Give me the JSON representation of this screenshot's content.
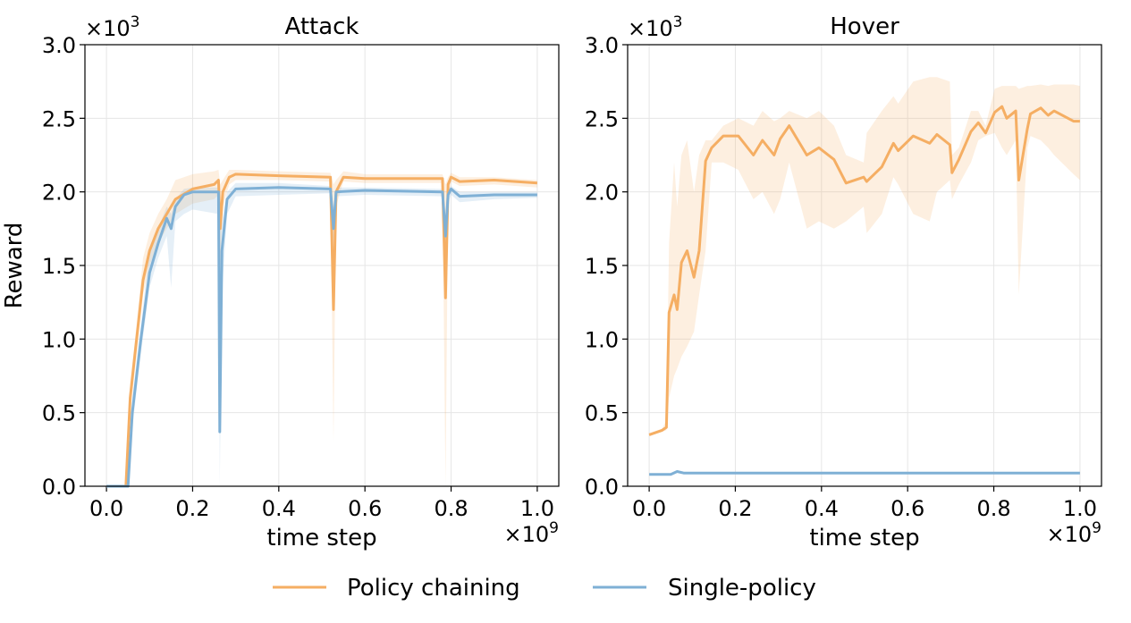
{
  "chart_data": [
    {
      "type": "line",
      "title": "Attack",
      "xlabel": "time step",
      "ylabel": "Reward",
      "x_multiplier": "×10^9",
      "y_multiplier": "×10^3",
      "xlim": [
        -0.05,
        1.05
      ],
      "ylim": [
        0,
        3.0
      ],
      "xticks": [
        "0.0",
        "0.2",
        "0.4",
        "0.6",
        "0.8",
        "1.0"
      ],
      "yticks": [
        "0.0",
        "0.5",
        "1.0",
        "1.5",
        "2.0",
        "2.5",
        "3.0"
      ],
      "grid": true,
      "series": [
        {
          "name": "Policy chaining",
          "color": "#f5ae63",
          "x": [
            0,
            0.045,
            0.055,
            0.07,
            0.085,
            0.1,
            0.12,
            0.14,
            0.16,
            0.2,
            0.25,
            0.26,
            0.264,
            0.27,
            0.285,
            0.3,
            0.4,
            0.52,
            0.527,
            0.533,
            0.55,
            0.6,
            0.78,
            0.787,
            0.793,
            0.8,
            0.82,
            0.9,
            1.0
          ],
          "y": [
            0,
            0,
            0.6,
            1.0,
            1.4,
            1.6,
            1.75,
            1.85,
            1.95,
            2.02,
            2.05,
            2.08,
            1.75,
            2.0,
            2.1,
            2.12,
            2.11,
            2.1,
            1.2,
            2.0,
            2.1,
            2.09,
            2.09,
            1.28,
            2.05,
            2.1,
            2.07,
            2.08,
            2.06
          ],
          "lower": [
            0,
            0,
            0.5,
            0.9,
            1.3,
            1.5,
            1.65,
            1.75,
            1.85,
            1.92,
            1.95,
            1.98,
            1.5,
            1.9,
            2.05,
            2.08,
            2.08,
            2.07,
            0.3,
            1.9,
            2.07,
            2.06,
            2.06,
            0.0,
            1.95,
            2.07,
            2.04,
            2.05,
            2.03
          ],
          "upper": [
            0,
            0,
            0.7,
            1.1,
            1.55,
            1.72,
            1.85,
            1.95,
            2.08,
            2.12,
            2.14,
            2.15,
            2.05,
            2.08,
            2.15,
            2.15,
            2.14,
            2.13,
            2.05,
            2.08,
            2.14,
            2.12,
            2.12,
            2.05,
            2.1,
            2.13,
            2.1,
            2.1,
            2.08
          ]
        },
        {
          "name": "Single-policy",
          "color": "#7fb0d5",
          "x": [
            0,
            0.05,
            0.06,
            0.08,
            0.1,
            0.12,
            0.14,
            0.15,
            0.16,
            0.18,
            0.2,
            0.26,
            0.263,
            0.268,
            0.28,
            0.3,
            0.4,
            0.52,
            0.527,
            0.533,
            0.6,
            0.78,
            0.787,
            0.793,
            0.8,
            0.82,
            0.9,
            1.0
          ],
          "y": [
            0,
            0,
            0.5,
            1.0,
            1.45,
            1.65,
            1.82,
            1.75,
            1.9,
            1.98,
            2.0,
            2.0,
            0.37,
            1.6,
            1.95,
            2.02,
            2.03,
            2.02,
            1.75,
            2.0,
            2.01,
            2.0,
            1.7,
            1.98,
            2.02,
            1.97,
            1.98,
            1.98
          ],
          "lower": [
            0,
            0,
            0.4,
            0.9,
            1.35,
            1.55,
            1.7,
            1.35,
            1.8,
            1.85,
            1.88,
            1.85,
            0.0,
            1.3,
            1.85,
            1.97,
            1.98,
            1.99,
            1.65,
            1.97,
            1.98,
            1.97,
            1.6,
            1.92,
            1.98,
            1.93,
            1.95,
            1.96
          ],
          "upper": [
            0,
            0,
            0.6,
            1.1,
            1.6,
            1.75,
            1.9,
            1.85,
            1.95,
            2.02,
            2.03,
            2.03,
            1.9,
            1.8,
            2.0,
            2.06,
            2.06,
            2.04,
            1.9,
            2.03,
            2.03,
            2.02,
            1.85,
            2.02,
            2.04,
            2.0,
            2.0,
            2.0
          ]
        }
      ]
    },
    {
      "type": "line",
      "title": "Hover",
      "xlabel": "time step",
      "ylabel": "",
      "x_multiplier": "×10^9",
      "y_multiplier": "×10^3",
      "xlim": [
        -0.05,
        1.05
      ],
      "ylim": [
        0,
        3.0
      ],
      "xticks": [
        "0.0",
        "0.2",
        "0.4",
        "0.6",
        "0.8",
        "1.0"
      ],
      "yticks": [
        "0.0",
        "0.5",
        "1.0",
        "1.5",
        "2.0",
        "2.5",
        "3.0"
      ],
      "grid": true,
      "series": [
        {
          "name": "Policy chaining",
          "color": "#f5ae63",
          "x": [
            0,
            0.03,
            0.04,
            0.046,
            0.058,
            0.065,
            0.075,
            0.088,
            0.104,
            0.116,
            0.131,
            0.145,
            0.172,
            0.207,
            0.242,
            0.263,
            0.29,
            0.304,
            0.325,
            0.366,
            0.394,
            0.429,
            0.457,
            0.498,
            0.505,
            0.54,
            0.567,
            0.578,
            0.613,
            0.651,
            0.668,
            0.698,
            0.703,
            0.719,
            0.747,
            0.764,
            0.781,
            0.802,
            0.819,
            0.83,
            0.851,
            0.858,
            0.878,
            0.885,
            0.909,
            0.926,
            0.94,
            0.985,
            1.0
          ],
          "y": [
            0.35,
            0.38,
            0.4,
            1.18,
            1.3,
            1.2,
            1.52,
            1.6,
            1.42,
            1.6,
            2.21,
            2.3,
            2.38,
            2.38,
            2.25,
            2.35,
            2.25,
            2.36,
            2.45,
            2.25,
            2.3,
            2.22,
            2.06,
            2.1,
            2.07,
            2.17,
            2.33,
            2.28,
            2.38,
            2.33,
            2.39,
            2.32,
            2.13,
            2.22,
            2.41,
            2.47,
            2.4,
            2.54,
            2.58,
            2.5,
            2.55,
            2.08,
            2.43,
            2.53,
            2.57,
            2.52,
            2.55,
            2.48,
            2.48
          ],
          "lower": [
            0.34,
            0.37,
            0.38,
            0.6,
            0.75,
            0.8,
            0.88,
            0.95,
            1.05,
            1.3,
            1.6,
            2.2,
            2.2,
            2.15,
            1.95,
            2.0,
            1.85,
            1.95,
            2.2,
            1.75,
            1.8,
            1.75,
            1.8,
            1.9,
            1.72,
            1.85,
            2.1,
            2.05,
            1.85,
            1.8,
            2.0,
            2.08,
            1.95,
            2.05,
            2.2,
            2.35,
            2.38,
            2.4,
            2.3,
            2.25,
            2.35,
            1.3,
            2.3,
            2.38,
            2.35,
            2.3,
            2.25,
            2.12,
            2.08
          ],
          "upper": [
            0.36,
            0.39,
            0.45,
            1.65,
            2.2,
            1.9,
            2.25,
            2.35,
            2.0,
            2.25,
            2.35,
            2.35,
            2.45,
            2.5,
            2.45,
            2.55,
            2.48,
            2.5,
            2.55,
            2.5,
            2.55,
            2.45,
            2.25,
            2.2,
            2.4,
            2.55,
            2.65,
            2.6,
            2.75,
            2.78,
            2.78,
            2.75,
            2.25,
            2.3,
            2.55,
            2.55,
            2.45,
            2.7,
            2.72,
            2.72,
            2.72,
            2.7,
            2.72,
            2.72,
            2.73,
            2.72,
            2.73,
            2.73,
            2.72
          ]
        },
        {
          "name": "Single-policy",
          "color": "#7fb0d5",
          "x": [
            0,
            0.05,
            0.065,
            0.08,
            0.3,
            1.0
          ],
          "y": [
            0.08,
            0.08,
            0.1,
            0.09,
            0.09,
            0.09
          ],
          "lower": [
            0.08,
            0.08,
            0.1,
            0.09,
            0.09,
            0.09
          ],
          "upper": [
            0.08,
            0.08,
            0.1,
            0.09,
            0.09,
            0.09
          ]
        }
      ]
    }
  ],
  "legend": {
    "placement": "bottom-center",
    "items": [
      {
        "label": "Policy chaining",
        "color": "#f5ae63"
      },
      {
        "label": "Single-policy",
        "color": "#7fb0d5"
      }
    ]
  }
}
